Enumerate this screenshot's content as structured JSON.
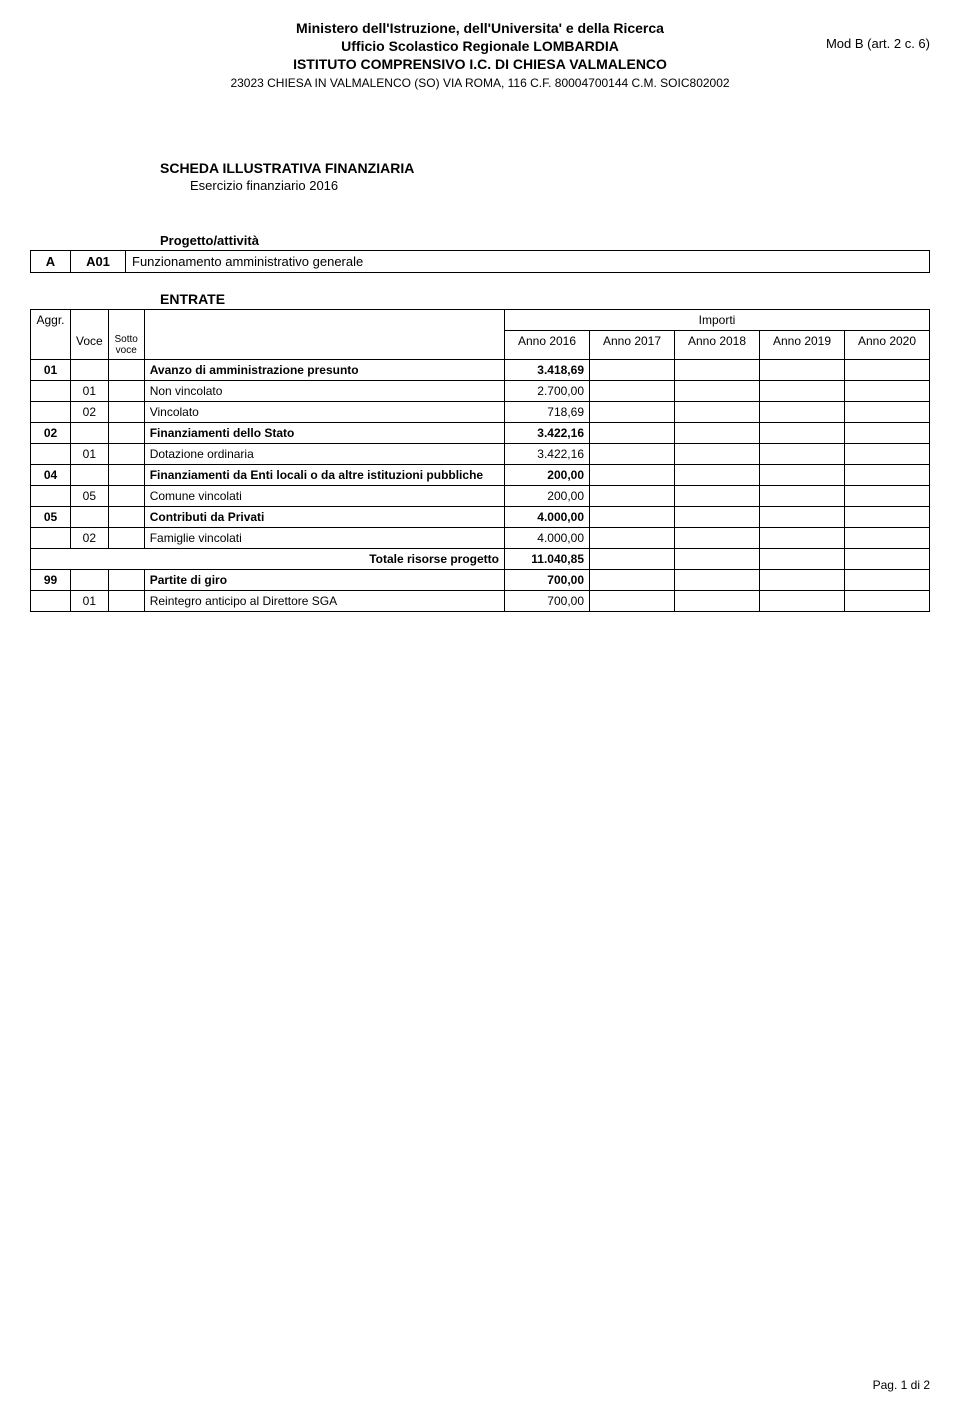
{
  "header": {
    "line1": "Ministero dell'Istruzione, dell'Universita' e della Ricerca",
    "line2": "Ufficio Scolastico Regionale LOMBARDIA",
    "line3": "ISTITUTO COMPRENSIVO I.C. DI  CHIESA VALMALENCO",
    "sub": "23023 CHIESA IN VALMALENCO (SO) VIA ROMA, 116 C.F. 80004700144 C.M. SOIC802002",
    "mod_b": "Mod B (art. 2 c. 6)"
  },
  "scheda": {
    "title": "SCHEDA ILLUSTRATIVA FINANZIARIA",
    "subtitle": "Esercizio finanziario 2016"
  },
  "progetto": {
    "label": "Progetto/attività",
    "code1": "A",
    "code2": "A01",
    "desc": "Funzionamento amministrativo generale"
  },
  "entrate": {
    "section_label": "ENTRATE",
    "header": {
      "aggr": "Aggr.",
      "voce": "Voce",
      "sotto": "Sotto voce",
      "importi": "Importi",
      "anno1": "Anno 2016",
      "anno2": "Anno 2017",
      "anno3": "Anno 2018",
      "anno4": "Anno 2019",
      "anno5": "Anno 2020"
    },
    "rows": [
      {
        "aggr": "01",
        "voce": "",
        "sotto": "",
        "desc": "Avanzo di amministrazione presunto",
        "val": "3.418,69",
        "bold": true
      },
      {
        "aggr": "",
        "voce": "01",
        "sotto": "",
        "desc": "Non vincolato",
        "val": "2.700,00",
        "bold": false
      },
      {
        "aggr": "",
        "voce": "02",
        "sotto": "",
        "desc": "Vincolato",
        "val": "718,69",
        "bold": false
      },
      {
        "aggr": "02",
        "voce": "",
        "sotto": "",
        "desc": "Finanziamenti dello Stato",
        "val": "3.422,16",
        "bold": true
      },
      {
        "aggr": "",
        "voce": "01",
        "sotto": "",
        "desc": "Dotazione ordinaria",
        "val": "3.422,16",
        "bold": false
      },
      {
        "aggr": "04",
        "voce": "",
        "sotto": "",
        "desc": "Finanziamenti da Enti locali o da altre istituzioni pubbliche",
        "val": "200,00",
        "bold": true
      },
      {
        "aggr": "",
        "voce": "05",
        "sotto": "",
        "desc": "Comune vincolati",
        "val": "200,00",
        "bold": false
      },
      {
        "aggr": "05",
        "voce": "",
        "sotto": "",
        "desc": "Contributi da Privati",
        "val": "4.000,00",
        "bold": true
      },
      {
        "aggr": "",
        "voce": "02",
        "sotto": "",
        "desc": "Famiglie vincolati",
        "val": "4.000,00",
        "bold": false
      }
    ],
    "totale_label": "Totale risorse progetto",
    "totale_val": "11.040,85",
    "rows_after": [
      {
        "aggr": "99",
        "voce": "",
        "sotto": "",
        "desc": "Partite di giro",
        "val": "700,00",
        "bold": true
      },
      {
        "aggr": "",
        "voce": "01",
        "sotto": "",
        "desc": "Reintegro anticipo al Direttore SGA",
        "val": "700,00",
        "bold": false
      }
    ]
  },
  "footer": {
    "page": "Pag. 1 di 2"
  }
}
